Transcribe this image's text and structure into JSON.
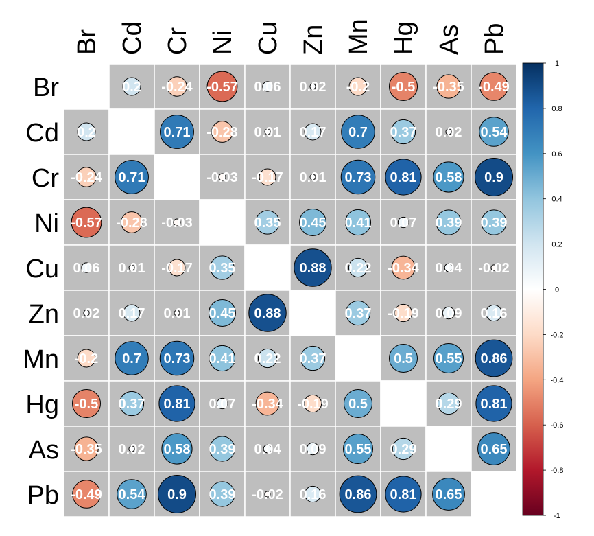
{
  "chart_data": {
    "type": "heatmap",
    "style": "circle correlation matrix",
    "variables": [
      "Br",
      "Cd",
      "Cr",
      "Ni",
      "Cu",
      "Zn",
      "Mn",
      "Hg",
      "As",
      "Pb"
    ],
    "matrix": [
      [
        null,
        0.2,
        -0.24,
        -0.57,
        0.06,
        0.02,
        -0.2,
        -0.5,
        -0.35,
        -0.49
      ],
      [
        0.2,
        null,
        0.71,
        -0.28,
        0.01,
        0.17,
        0.7,
        0.37,
        0.02,
        0.54
      ],
      [
        -0.24,
        0.71,
        null,
        -0.03,
        -0.17,
        0.01,
        0.73,
        0.81,
        0.58,
        0.9
      ],
      [
        -0.57,
        -0.28,
        -0.03,
        null,
        0.35,
        0.45,
        0.41,
        0.07,
        0.39,
        0.39
      ],
      [
        0.06,
        0.01,
        -0.17,
        0.35,
        null,
        0.88,
        0.22,
        -0.34,
        0.04,
        -0.02
      ],
      [
        0.02,
        0.17,
        0.01,
        0.45,
        0.88,
        null,
        0.37,
        -0.19,
        0.09,
        0.16
      ],
      [
        -0.2,
        0.7,
        0.73,
        0.41,
        0.22,
        0.37,
        null,
        0.5,
        0.55,
        0.86
      ],
      [
        -0.5,
        0.37,
        0.81,
        0.07,
        -0.34,
        -0.19,
        0.5,
        null,
        0.29,
        0.81
      ],
      [
        -0.35,
        0.02,
        0.58,
        0.39,
        0.04,
        0.09,
        0.55,
        0.29,
        null,
        0.65
      ],
      [
        -0.49,
        0.54,
        0.9,
        0.39,
        -0.02,
        0.16,
        0.86,
        0.81,
        0.65,
        null
      ]
    ],
    "labels": [
      [
        "",
        "0.2",
        "-0.24",
        "-0.57",
        "0.06",
        "0.02",
        "-0.2",
        "-0.5",
        "-0.35",
        "-0.49"
      ],
      [
        "0.2",
        "",
        "0.71",
        "-0.28",
        "0.01",
        "0.17",
        "0.7",
        "0.37",
        "0.02",
        "0.54"
      ],
      [
        "-0.24",
        "0.71",
        "",
        "-0.03",
        "-0.17",
        "0.01",
        "0.73",
        "0.81",
        "0.58",
        "0.9"
      ],
      [
        "-0.57",
        "-0.28",
        "-0.03",
        "",
        "0.35",
        "0.45",
        "0.41",
        "0.07",
        "0.39",
        "0.39"
      ],
      [
        "0.06",
        "0.01",
        "-0.17",
        "0.35",
        "",
        "0.88",
        "0.22",
        "-0.34",
        "0.04",
        "-0.02"
      ],
      [
        "0.02",
        "0.17",
        "0.01",
        "0.45",
        "0.88",
        "",
        "0.37",
        "-0.19",
        "0.09",
        "0.16"
      ],
      [
        "-0.2",
        "0.7",
        "0.73",
        "0.41",
        "0.22",
        "0.37",
        "",
        "0.5",
        "0.55",
        "0.86"
      ],
      [
        "-0.5",
        "0.37",
        "0.81",
        "0.07",
        "-0.34",
        "-0.19",
        "0.5",
        "",
        "0.29",
        "0.81"
      ],
      [
        "-0.35",
        "0.02",
        "0.58",
        "0.39",
        "0.04",
        "0.09",
        "0.55",
        "0.29",
        "",
        "0.65"
      ],
      [
        "-0.49",
        "0.54",
        "0.9",
        "0.39",
        "-0.02",
        "0.16",
        "0.86",
        "0.81",
        "0.65",
        ""
      ]
    ],
    "color_range": [
      -1,
      1
    ],
    "colorbar_ticks": [
      "1",
      "0.8",
      "0.6",
      "0.4",
      "0.2",
      "0",
      "-0.2",
      "-0.4",
      "-0.6",
      "-0.8",
      "-1"
    ],
    "colorbar_position": "right",
    "cell_background": "#bebebe",
    "diagonal_background": "#ffffff",
    "grid": true,
    "title": "",
    "xlabel": "",
    "ylabel": "",
    "palette": [
      "#67001f",
      "#b2182b",
      "#d6604d",
      "#f4a582",
      "#fddbc7",
      "#ffffff",
      "#d1e5f0",
      "#92c5de",
      "#4393c3",
      "#2166ac",
      "#053061"
    ]
  }
}
